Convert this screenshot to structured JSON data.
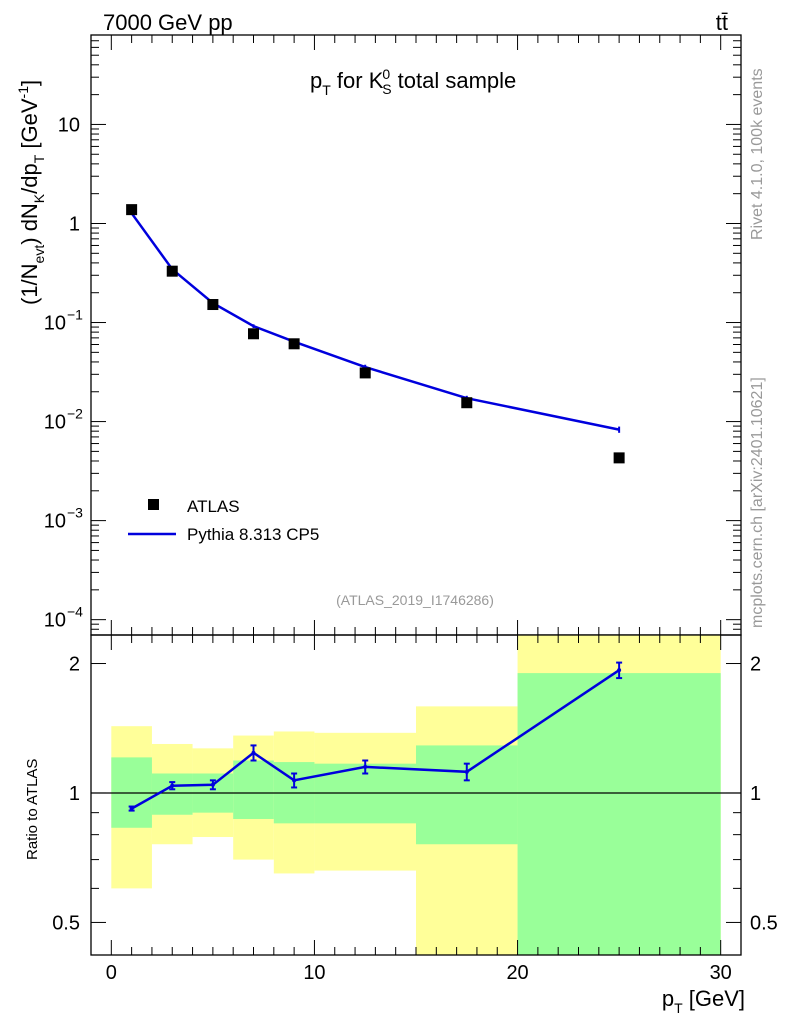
{
  "header": {
    "energy_label": "7000 GeV pp",
    "process_label": "tt̄"
  },
  "side_text": {
    "rivet": "Rivet 4.1.0,  100k events",
    "mcplots": "mcplots.cern.ch [arXiv:2401.10621]"
  },
  "analysis_id": "(ATLAS_2019_I1746286)",
  "chart_data": [
    {
      "type": "scatter",
      "title": "p_T for K_S^0 total sample",
      "xlabel": "p_T [GeV]",
      "ylabel": "(1/N_evt) dN_K/dp_T [GeV^-1]",
      "yscale": "log",
      "xlim": [
        -1,
        31
      ],
      "ylim": [
        7e-05,
        80
      ],
      "y_ticks": [
        {
          "value": 0.0001,
          "base": "10",
          "exp": "−4"
        },
        {
          "value": 0.001,
          "base": "10",
          "exp": "−3"
        },
        {
          "value": 0.01,
          "base": "10",
          "exp": "−2"
        },
        {
          "value": 0.1,
          "base": "10",
          "exp": "−1"
        },
        {
          "value": 1,
          "base": "1",
          "exp": ""
        },
        {
          "value": 10,
          "base": "10",
          "exp": ""
        }
      ],
      "legend": {
        "position": "lower-left",
        "entries": [
          "ATLAS",
          "Pythia 8.313 CP5"
        ]
      },
      "series": [
        {
          "name": "ATLAS",
          "color": "#000000",
          "x": [
            1,
            3,
            5,
            7,
            9,
            12.5,
            17.5,
            25
          ],
          "y": [
            1.38,
            0.33,
            0.152,
            0.077,
            0.061,
            0.031,
            0.0155,
            0.0043
          ]
        },
        {
          "name": "Pythia 8.313 CP5",
          "color": "#0000dd",
          "x": [
            1,
            3,
            5,
            7,
            9,
            12.5,
            17.5,
            25
          ],
          "y": [
            1.27,
            0.345,
            0.157,
            0.092,
            0.064,
            0.0355,
            0.0172,
            0.0083
          ],
          "yerr": [
            0.02,
            0.005,
            0.003,
            0.004,
            0.003,
            0.002,
            0.001,
            0.0006
          ]
        }
      ]
    },
    {
      "type": "line",
      "ylabel": "Ratio to ATLAS",
      "xlabel": "p_T [GeV]",
      "xlim": [
        -1,
        31
      ],
      "ylim": [
        0.42,
        2.33
      ],
      "yscale": "log",
      "x_ticks": [
        0,
        10,
        20,
        30
      ],
      "y_ticks": [
        0.5,
        1,
        2
      ],
      "reference_line": 1,
      "bands": [
        {
          "xlo": 0,
          "xhi": 2,
          "inner": [
            0.83,
            1.21
          ],
          "outer": [
            0.6,
            1.43
          ]
        },
        {
          "xlo": 2,
          "xhi": 4,
          "inner": [
            0.89,
            1.11
          ],
          "outer": [
            0.76,
            1.3
          ]
        },
        {
          "xlo": 4,
          "xhi": 6,
          "inner": [
            0.9,
            1.11
          ],
          "outer": [
            0.79,
            1.27
          ]
        },
        {
          "xlo": 6,
          "xhi": 8,
          "inner": [
            0.87,
            1.19
          ],
          "outer": [
            0.7,
            1.36
          ]
        },
        {
          "xlo": 8,
          "xhi": 10,
          "inner": [
            0.85,
            1.18
          ],
          "outer": [
            0.65,
            1.39
          ]
        },
        {
          "xlo": 10,
          "xhi": 15,
          "inner": [
            0.85,
            1.17
          ],
          "outer": [
            0.66,
            1.38
          ]
        },
        {
          "xlo": 15,
          "xhi": 20,
          "inner": [
            0.76,
            1.29
          ],
          "outer": [
            0.39,
            1.59
          ]
        },
        {
          "xlo": 20,
          "xhi": 30,
          "inner": [
            0.35,
            1.9
          ],
          "outer": [
            0.35,
            2.4
          ]
        }
      ],
      "series": [
        {
          "name": "Pythia 8.313 CP5 / ATLAS",
          "color": "#0000dd",
          "x": [
            1,
            3,
            5,
            7,
            9,
            12.5,
            17.5,
            25
          ],
          "y": [
            0.92,
            1.04,
            1.045,
            1.24,
            1.07,
            1.15,
            1.12,
            1.93
          ],
          "yerr": [
            0.01,
            0.02,
            0.025,
            0.05,
            0.04,
            0.04,
            0.05,
            0.08
          ]
        }
      ],
      "colors": {
        "inner_band": "#99ff99",
        "outer_band": "#ffff99",
        "line": "#0000dd"
      }
    }
  ]
}
